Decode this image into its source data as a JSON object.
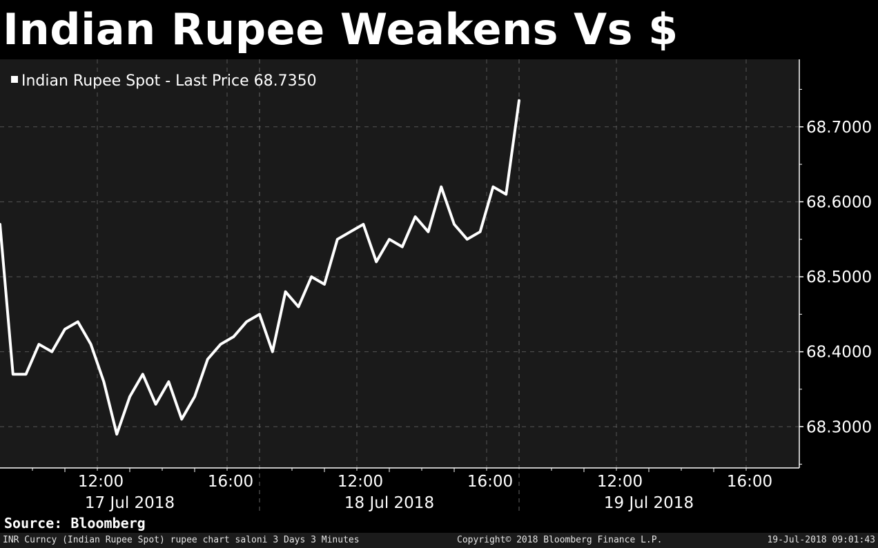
{
  "header": {
    "title": "Indian Rupee Weakens Vs $"
  },
  "chart_data": {
    "type": "line",
    "title": "Indian Rupee Weakens Vs $",
    "legend": {
      "label": "Indian Rupee Spot - Last Price 68.7350",
      "position": "top-left"
    },
    "series": [
      {
        "name": "Indian Rupee Spot",
        "color": "#ffffff",
        "x": [
          0.0,
          0.05,
          0.1,
          0.15,
          0.2,
          0.25,
          0.3,
          0.35,
          0.4,
          0.45,
          0.5,
          0.55,
          0.6,
          0.65,
          0.7,
          0.75,
          0.8,
          0.85,
          0.9,
          0.95,
          1.0,
          1.05,
          1.1,
          1.15,
          1.2,
          1.25,
          1.3,
          1.35,
          1.4,
          1.45,
          1.5,
          1.55,
          1.6,
          1.65,
          1.7,
          1.75,
          1.8,
          1.85,
          1.9,
          1.95,
          2.0
        ],
        "y": [
          68.57,
          68.37,
          68.37,
          68.41,
          68.4,
          68.43,
          68.44,
          68.41,
          68.36,
          68.29,
          68.34,
          68.37,
          68.33,
          68.36,
          68.31,
          68.34,
          68.39,
          68.41,
          68.42,
          68.44,
          68.45,
          68.4,
          68.48,
          68.46,
          68.5,
          68.49,
          68.55,
          68.56,
          68.57,
          68.52,
          68.55,
          68.54,
          68.58,
          68.56,
          68.62,
          68.57,
          68.55,
          68.56,
          68.62,
          68.61,
          68.735
        ]
      }
    ],
    "ylim": [
      68.245,
      68.79
    ],
    "yticks": [
      "68.3000",
      "68.4000",
      "68.5000",
      "68.6000",
      "68.7000"
    ],
    "xticks": [
      {
        "date": "17 Jul 2018",
        "times": [
          "12:00",
          "16:00"
        ]
      },
      {
        "date": "18 Jul 2018",
        "times": [
          "12:00",
          "16:00"
        ]
      },
      {
        "date": "19 Jul 2018",
        "times": [
          "12:00",
          "16:00"
        ]
      }
    ],
    "colors": {
      "background": "#1a1a1a",
      "line": "#ffffff",
      "grid": "#555555"
    }
  },
  "source": "Source: Bloomberg",
  "footer": {
    "left": "INR Curncy (Indian Rupee Spot) rupee chart saloni 3 Days 3 Minutes",
    "center": "Copyright© 2018 Bloomberg Finance L.P.",
    "right": "19-Jul-2018 09:01:43"
  }
}
